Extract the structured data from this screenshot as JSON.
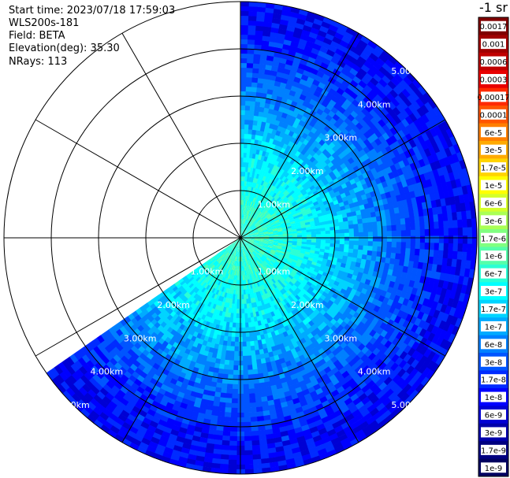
{
  "info": {
    "start_time": "Start time: 2023/07/18 17:59:03",
    "instrument": "WLS200s-181",
    "field": "Field: BETA",
    "elevation": "Elevation(deg): 35.30",
    "nrays": "NRays: 113"
  },
  "colorbar": {
    "title": "-1 sr",
    "labels": [
      "0.0017",
      "0.001",
      "0.0006",
      "0.0003",
      "0.00017",
      "0.0001",
      "6e-5",
      "3e-5",
      "1.7e-5",
      "1e-5",
      "6e-6",
      "3e-6",
      "1.7e-6",
      "1e-6",
      "6e-7",
      "3e-7",
      "1.7e-7",
      "1e-7",
      "6e-8",
      "3e-8",
      "1.7e-8",
      "1e-8",
      "6e-9",
      "3e-9",
      "1.7e-9",
      "1e-9"
    ],
    "colors": [
      "#800000",
      "#a00000",
      "#c00000",
      "#e80000",
      "#ff2a00",
      "#ff5500",
      "#ff7f00",
      "#ffaa00",
      "#ffd400",
      "#ffff00",
      "#d4ff2b",
      "#aaff55",
      "#80ff80",
      "#55ffaa",
      "#2bffd4",
      "#00ffff",
      "#00d4ff",
      "#00aaff",
      "#0080ff",
      "#0055ff",
      "#002bff",
      "#0000ff",
      "#0000d4",
      "#0000aa",
      "#000080",
      "#000060"
    ]
  },
  "chart_data": {
    "type": "heatmap",
    "projection": "polar (PPI)",
    "field": "BETA",
    "range_ticks_km": [
      1,
      2,
      3,
      4,
      5
    ],
    "range_labels": [
      "1.00km",
      "2.00km",
      "3.00km",
      "4.00km",
      "5.00km"
    ],
    "max_range_km": 5.0,
    "azimuth_spokes_deg": [
      0,
      30,
      60,
      90,
      120,
      150,
      180,
      210,
      240,
      270,
      300,
      330
    ],
    "scan_sector_deg": [
      0,
      235
    ],
    "colormap": "jet",
    "scale": "log",
    "value_range": [
      1e-09,
      0.0017
    ],
    "dominant_value_by_range": [
      {
        "range_km": 0.5,
        "value": 6e-07
      },
      {
        "range_km": 1.5,
        "value": 3e-07
      },
      {
        "range_km": 2.5,
        "value": 1e-07
      },
      {
        "range_km": 3.5,
        "value": 3e-08
      },
      {
        "range_km": 4.5,
        "value": 1e-08
      }
    ]
  }
}
